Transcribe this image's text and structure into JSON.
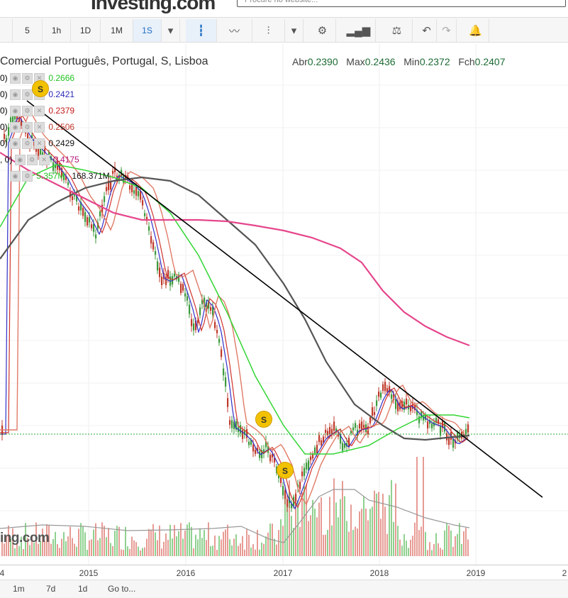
{
  "site": {
    "logo_text": "Investing.com",
    "search_placeholder": "Procure no website..."
  },
  "toolbar": {
    "intervals": [
      "5",
      "1h",
      "1D",
      "1M",
      "1S"
    ],
    "active_interval": "1S",
    "icons": [
      "chevron-down-icon",
      "candlestick-icon",
      "line-chart-icon",
      "bar-chart-icon",
      "chevron-down-icon",
      "gear-icon",
      "volume-bars-icon",
      "scale-compare-icon",
      "undo-icon",
      "redo-icon",
      "add-alert-icon"
    ]
  },
  "legend": {
    "title": "Comercial Português, Portugal, S, Lisboa",
    "open_label": "Abr",
    "open": "0.2390",
    "high_label": "Max",
    "high": "0.2436",
    "low_label": "Min",
    "low": "0.2372",
    "close_label": "Fch",
    "close": "0.2407"
  },
  "indicators": [
    {
      "prefix": "0)",
      "value": "0.2666",
      "color": "#22c322"
    },
    {
      "prefix": "0)",
      "value": "0.2421",
      "color": "#2a2ab8"
    },
    {
      "prefix": "0)",
      "value": "0.2379",
      "color": "#c41a1a"
    },
    {
      "prefix": "0)",
      "value": "0.2506",
      "color": "#c0392b"
    },
    {
      "prefix": "0)",
      "value": "0.2429",
      "color": "#111111"
    },
    {
      "prefix": ", 0)",
      "value": "0.4175",
      "color": "#b0147a"
    },
    {
      "prefix": "",
      "value": "5.357M",
      "value2": "168.371M",
      "color": "#22c322"
    }
  ],
  "xaxis": {
    "ticks": [
      "4",
      "2015",
      "2016",
      "2017",
      "2018",
      "2019",
      "2"
    ]
  },
  "bottombar": {
    "items": [
      "1m",
      "7d",
      "1d",
      "Go to..."
    ]
  },
  "markers": [
    "S",
    "S",
    "S"
  ],
  "watermark": "ing.com",
  "colors": {
    "up": "#3c9a3c",
    "down": "#c0392b",
    "ma_green": "#33d633",
    "ma_blue": "#3030c8",
    "ma_red": "#d0342c",
    "ma_salmon": "#e07b67",
    "ma_gray": "#555555",
    "ma_pink": "#e5468c",
    "trendline": "#000000",
    "price_line": "#2ea83a"
  },
  "chart_data": {
    "type": "candlestick",
    "x_ticks": [
      "2015",
      "2016",
      "2017",
      "2018",
      "2019"
    ],
    "price_range_approx": [
      0.22,
      0.45
    ],
    "last_close": 0.2407,
    "series": [
      {
        "name": "0.2666",
        "kind": "moving-average"
      },
      {
        "name": "0.2421",
        "kind": "moving-average"
      },
      {
        "name": "0.2379",
        "kind": "moving-average"
      },
      {
        "name": "0.2506",
        "kind": "moving-average"
      },
      {
        "name": "0.2429",
        "kind": "moving-average"
      },
      {
        "name": "0.4175",
        "kind": "moving-average"
      }
    ],
    "volume_labels": [
      "5.357M",
      "168.371M"
    ]
  }
}
